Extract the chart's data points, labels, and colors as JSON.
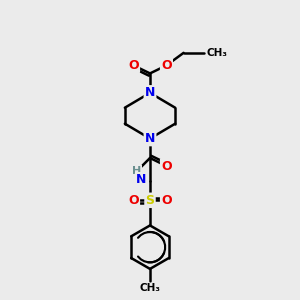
{
  "background_color": "#ebebeb",
  "atom_colors": {
    "C": "#000000",
    "N": "#0000ee",
    "O": "#ee0000",
    "S": "#cccc00",
    "H": "#6a8f8f"
  },
  "bond_color": "#000000",
  "bond_width": 1.8,
  "figsize": [
    3.0,
    3.0
  ],
  "dpi": 100
}
